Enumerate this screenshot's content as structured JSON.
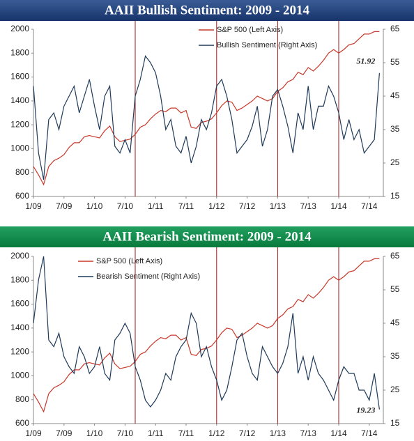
{
  "chart_data": [
    {
      "type": "line",
      "title": "AAII Bullish Sentiment: 2009 - 2014",
      "categories": [
        "1/09",
        null,
        null,
        null,
        null,
        null,
        "7/09",
        null,
        null,
        null,
        null,
        null,
        "1/10",
        null,
        null,
        null,
        null,
        null,
        "7/10",
        null,
        null,
        null,
        null,
        null,
        "1/11",
        null,
        null,
        null,
        null,
        null,
        "7/11",
        null,
        null,
        null,
        null,
        null,
        "1/12",
        null,
        null,
        null,
        null,
        null,
        "7/12",
        null,
        null,
        null,
        null,
        null,
        "1/13",
        null,
        null,
        null,
        null,
        null,
        "7/13",
        null,
        null,
        null,
        null,
        null,
        "1/14",
        null,
        null,
        null,
        null,
        null,
        "7/14",
        null,
        null
      ],
      "series": [
        {
          "name": "S&P 500 (Left Axis)",
          "color": "#c8382a",
          "axis": "y",
          "values": [
            850,
            780,
            700,
            850,
            900,
            920,
            950,
            1010,
            1050,
            1050,
            1100,
            1110,
            1100,
            1090,
            1150,
            1190,
            1100,
            1060,
            1070,
            1080,
            1120,
            1180,
            1200,
            1250,
            1290,
            1320,
            1310,
            1340,
            1340,
            1300,
            1320,
            1180,
            1170,
            1220,
            1230,
            1250,
            1300,
            1360,
            1400,
            1390,
            1320,
            1340,
            1370,
            1400,
            1440,
            1420,
            1400,
            1420,
            1480,
            1510,
            1560,
            1580,
            1640,
            1620,
            1680,
            1650,
            1690,
            1740,
            1800,
            1830,
            1800,
            1830,
            1870,
            1880,
            1920,
            1960,
            1960,
            1980,
            1980
          ]
        },
        {
          "name": "Bullish Sentiment (Right Axis)",
          "color": "#1f3a5a",
          "axis": "y2",
          "values": [
            48,
            28,
            20,
            38,
            40,
            35,
            42,
            45,
            48,
            40,
            45,
            50,
            42,
            35,
            45,
            48,
            30,
            28,
            32,
            28,
            45,
            50,
            57,
            55,
            52,
            45,
            35,
            38,
            30,
            28,
            33,
            25,
            30,
            38,
            35,
            40,
            48,
            50,
            45,
            38,
            28,
            30,
            32,
            36,
            42,
            30,
            35,
            45,
            47,
            42,
            36,
            28,
            40,
            35,
            48,
            35,
            42,
            42,
            48,
            45,
            40,
            32,
            38,
            32,
            35,
            28,
            30,
            32,
            51.92
          ]
        }
      ],
      "ylim": [
        600,
        2000
      ],
      "yticks": [
        600,
        800,
        1000,
        1200,
        1400,
        1600,
        1800,
        2000
      ],
      "y2lim": [
        15,
        65
      ],
      "y2ticks": [
        15,
        25,
        35,
        45,
        55,
        65
      ],
      "markers": [
        20,
        36,
        48,
        60
      ]
    },
    {
      "type": "line",
      "title": "AAII Bearish Sentiment: 2009 - 2014",
      "categories": [
        "1/09",
        null,
        null,
        null,
        null,
        null,
        "7/09",
        null,
        null,
        null,
        null,
        null,
        "1/10",
        null,
        null,
        null,
        null,
        null,
        "7/10",
        null,
        null,
        null,
        null,
        null,
        "1/11",
        null,
        null,
        null,
        null,
        null,
        "7/11",
        null,
        null,
        null,
        null,
        null,
        "1/12",
        null,
        null,
        null,
        null,
        null,
        "7/12",
        null,
        null,
        null,
        null,
        null,
        "1/13",
        null,
        null,
        null,
        null,
        null,
        "7/13",
        null,
        null,
        null,
        null,
        null,
        "1/14",
        null,
        null,
        null,
        null,
        null,
        "7/14",
        null,
        null
      ],
      "series": [
        {
          "name": "S&P 500 (Left Axis)",
          "color": "#c8382a",
          "axis": "y",
          "values": [
            850,
            780,
            700,
            850,
            900,
            920,
            950,
            1010,
            1050,
            1050,
            1100,
            1110,
            1100,
            1090,
            1150,
            1190,
            1100,
            1060,
            1070,
            1080,
            1120,
            1180,
            1200,
            1250,
            1290,
            1320,
            1310,
            1340,
            1340,
            1300,
            1320,
            1180,
            1170,
            1220,
            1230,
            1250,
            1300,
            1360,
            1400,
            1390,
            1320,
            1340,
            1370,
            1400,
            1440,
            1420,
            1400,
            1420,
            1480,
            1510,
            1560,
            1580,
            1640,
            1620,
            1680,
            1650,
            1690,
            1740,
            1800,
            1830,
            1800,
            1830,
            1870,
            1880,
            1920,
            1960,
            1960,
            1980,
            1980
          ]
        },
        {
          "name": "Bearish Sentiment (Right Axis)",
          "color": "#1f3a5a",
          "axis": "y2",
          "values": [
            45,
            58,
            65,
            40,
            38,
            42,
            35,
            32,
            30,
            38,
            35,
            30,
            32,
            38,
            30,
            28,
            40,
            42,
            45,
            42,
            32,
            28,
            22,
            20,
            22,
            25,
            30,
            28,
            35,
            38,
            40,
            48,
            45,
            35,
            38,
            32,
            28,
            22,
            25,
            32,
            40,
            42,
            35,
            30,
            28,
            38,
            35,
            32,
            30,
            33,
            38,
            48,
            30,
            35,
            28,
            35,
            30,
            28,
            25,
            22,
            28,
            32,
            30,
            30,
            25,
            25,
            22,
            30,
            19.23
          ]
        }
      ],
      "ylim": [
        600,
        2000
      ],
      "yticks": [
        600,
        800,
        1000,
        1200,
        1400,
        1600,
        1800,
        2000
      ],
      "y2lim": [
        15,
        65
      ],
      "y2ticks": [
        15,
        25,
        35,
        45,
        55,
        65
      ],
      "markers": [
        20,
        36,
        48,
        60
      ]
    }
  ]
}
